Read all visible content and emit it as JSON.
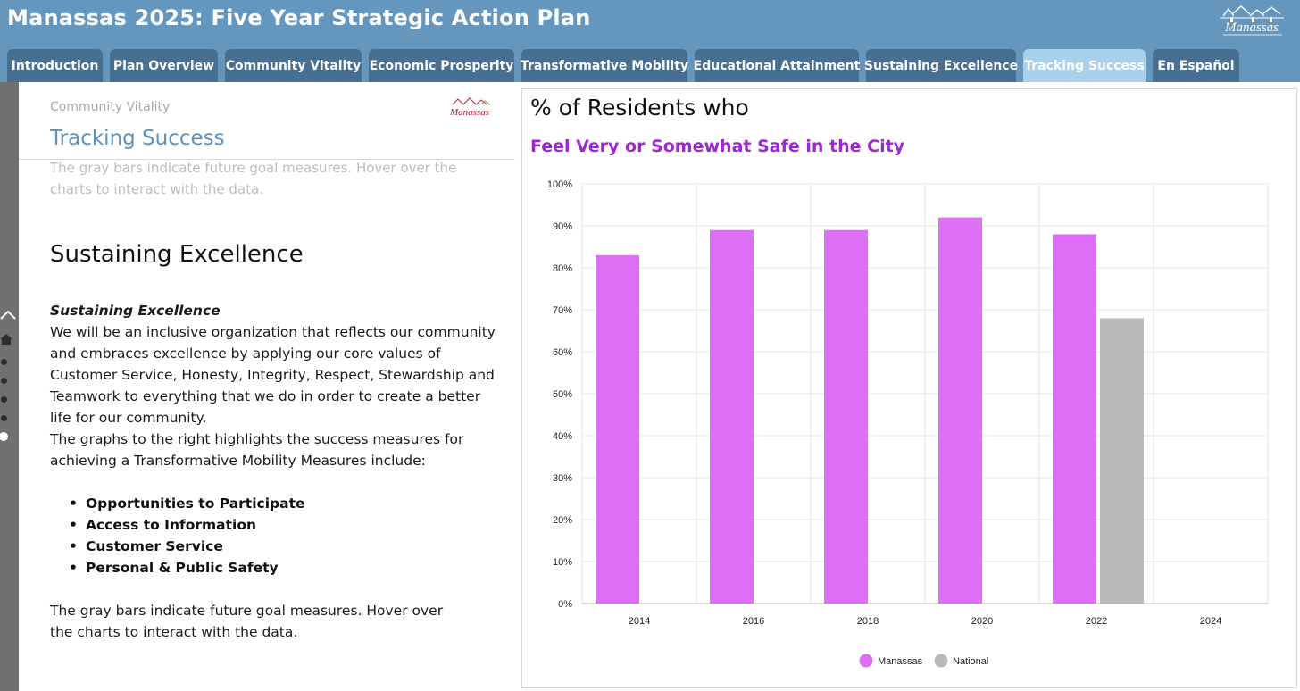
{
  "header": {
    "title": "Manassas 2025: Five Year Strategic Action Plan",
    "logo_text": "Manassas"
  },
  "tabs": [
    {
      "label": "Introduction",
      "active": false
    },
    {
      "label": "Plan Overview",
      "active": false
    },
    {
      "label": "Community Vitality",
      "active": false
    },
    {
      "label": "Economic Prosperity",
      "active": false
    },
    {
      "label": "Transformative Mobility",
      "active": false
    },
    {
      "label": "Educational Attainment",
      "active": false
    },
    {
      "label": "Sustaining Excellence",
      "active": false
    },
    {
      "label": "Tracking Success",
      "active": true
    },
    {
      "label": "En Español",
      "active": false
    }
  ],
  "left_rail": {
    "icons": [
      "chevron-up-icon",
      "home-icon"
    ],
    "dot_count": 5,
    "active_dot": 5
  },
  "left_panel": {
    "section_label": "Community Vitality",
    "logo_text": "Manassas",
    "heading": "Tracking Success",
    "ghost_note": "The gray bars indicate future goal measures. Hover over the charts to interact with the data.",
    "section_title": "Sustaining Excellence",
    "italic_heading": "Sustaining Excellence",
    "paragraph_1": "We will be an inclusive organization that reflects our community and embraces excellence by applying our core values of Customer Service, Honesty, Integrity, Respect, Stewardship and Teamwork to everything that we do in order to create a better life for our community.",
    "paragraph_2": "The graphs to the right highlights the success measures for achieving a Transformative Mobility Measures include:",
    "measures": [
      "Opportunities to Participate",
      "Access to Information",
      "Customer Service",
      "Personal & Public Safety"
    ],
    "bottom_note": "The gray bars indicate future goal measures. Hover over the charts to interact with the data."
  },
  "chart_data": {
    "type": "bar",
    "title": "% of Residents who",
    "subtitle": "Feel Very or Somewhat Safe in the City",
    "categories": [
      "2014",
      "2016",
      "2018",
      "2020",
      "2022",
      "2024"
    ],
    "series": [
      {
        "name": "Manassas",
        "color": "#dd6ff5",
        "values": [
          83,
          89,
          89,
          92,
          88,
          null
        ]
      },
      {
        "name": "National",
        "color": "#bababa",
        "values": [
          null,
          null,
          null,
          null,
          68,
          null
        ]
      }
    ],
    "ylim": [
      0,
      100
    ],
    "yticks": [
      "0%",
      "10%",
      "20%",
      "30%",
      "40%",
      "50%",
      "60%",
      "70%",
      "80%",
      "90%",
      "100%"
    ],
    "grid": true,
    "legend": "bottom-center"
  }
}
